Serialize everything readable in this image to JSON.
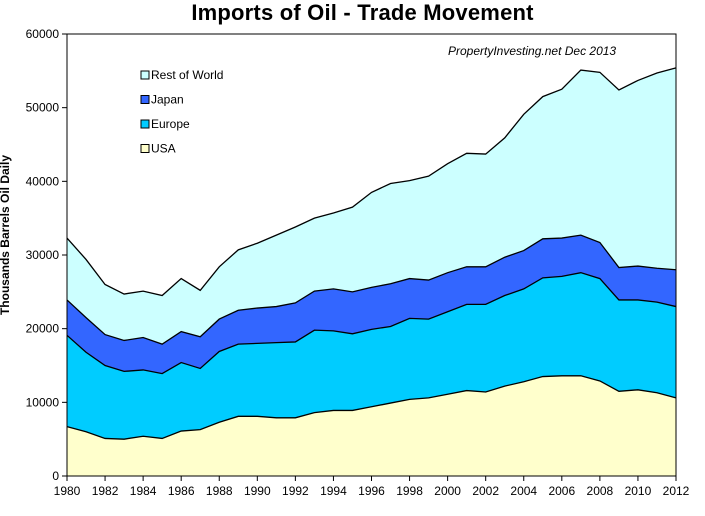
{
  "chart_data": {
    "type": "area",
    "stacked": true,
    "title": "Imports of Oil - Trade Movement",
    "ylabel": "Thousands Barrels Oil Daily",
    "xlabel": "",
    "annotation": "PropertyInvesting.net  Dec 2013",
    "ylim": [
      0,
      60000
    ],
    "xlim": [
      1980,
      2012
    ],
    "y_ticks": [
      0,
      10000,
      20000,
      30000,
      40000,
      50000,
      60000
    ],
    "x_ticks": [
      1980,
      1982,
      1984,
      1986,
      1988,
      1990,
      1992,
      1994,
      1996,
      1998,
      2000,
      2002,
      2004,
      2006,
      2008,
      2010,
      2012
    ],
    "grid": false,
    "legend_position": "top-left",
    "x": [
      1980,
      1981,
      1982,
      1983,
      1984,
      1985,
      1986,
      1987,
      1988,
      1989,
      1990,
      1991,
      1992,
      1993,
      1994,
      1995,
      1996,
      1997,
      1998,
      1999,
      2000,
      2001,
      2002,
      2003,
      2004,
      2005,
      2006,
      2007,
      2008,
      2009,
      2010,
      2011,
      2012
    ],
    "series": [
      {
        "name": "USA",
        "color": "#ffffcc",
        "values": [
          6700,
          6000,
          5100,
          5000,
          5400,
          5100,
          6100,
          6300,
          7300,
          8100,
          8100,
          7900,
          7900,
          8600,
          8900,
          8900,
          9400,
          9900,
          10400,
          10600,
          11100,
          11600,
          11400,
          12200,
          12800,
          13500,
          13600,
          13600,
          12900,
          11500,
          11700,
          11300,
          10600
        ]
      },
      {
        "name": "Europe",
        "color": "#00ccff",
        "values": [
          12400,
          10800,
          9900,
          9200,
          9000,
          8800,
          9300,
          8300,
          9600,
          9800,
          9900,
          10200,
          10300,
          11200,
          10800,
          10400,
          10500,
          10400,
          11000,
          10700,
          11200,
          11700,
          11900,
          12300,
          12600,
          13400,
          13500,
          14000,
          13900,
          12400,
          12200,
          12300,
          12400
        ]
      },
      {
        "name": "Japan",
        "color": "#3366ff",
        "values": [
          4800,
          4700,
          4200,
          4200,
          4400,
          4000,
          4200,
          4300,
          4400,
          4600,
          4800,
          4900,
          5300,
          5300,
          5700,
          5700,
          5700,
          5800,
          5400,
          5300,
          5300,
          5100,
          5100,
          5200,
          5200,
          5300,
          5200,
          5100,
          4900,
          4400,
          4600,
          4600,
          5000
        ]
      },
      {
        "name": "Rest of World",
        "color": "#ccffff",
        "values": [
          8400,
          7900,
          6800,
          6300,
          6300,
          6600,
          7200,
          6300,
          7100,
          8200,
          8800,
          9700,
          10300,
          9900,
          10300,
          11500,
          12900,
          13600,
          13300,
          14100,
          14800,
          15400,
          15300,
          16200,
          18500,
          19300,
          20200,
          22400,
          23100,
          24100,
          25200,
          26500,
          27400
        ]
      }
    ]
  }
}
